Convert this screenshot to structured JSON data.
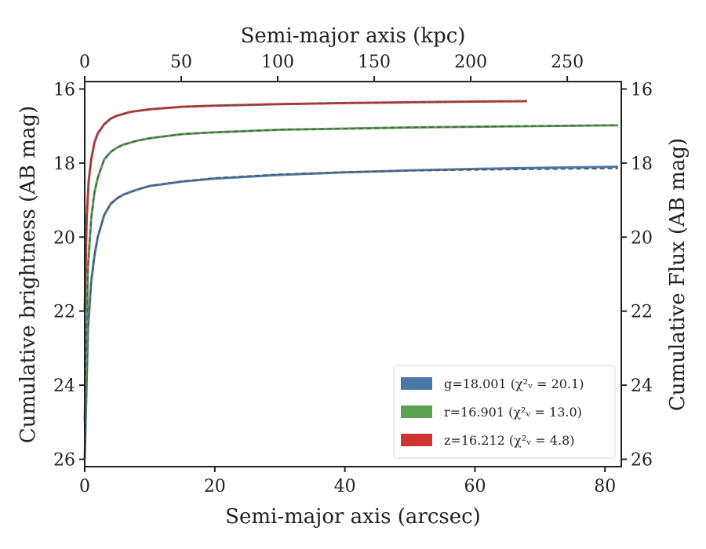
{
  "chart_data": {
    "type": "line",
    "title": "",
    "xlabel": "Semi-major axis (arcsec)",
    "top_xlabel": "Semi-major axis (kpc)",
    "ylabel": "Cumulative brightness (AB mag)",
    "right_ylabel": "Cumulative Flux (AB mag)",
    "xlim": [
      0,
      82.5
    ],
    "ylim": [
      26.2,
      15.8
    ],
    "y_inverted": true,
    "top_xlim": [
      0,
      278
    ],
    "x_ticks": [
      "0",
      "20",
      "40",
      "60",
      "80"
    ],
    "top_x_ticks": [
      "0",
      "50",
      "100",
      "150",
      "200",
      "250"
    ],
    "y_ticks": [
      "16",
      "18",
      "20",
      "22",
      "24",
      "26"
    ],
    "grid": false,
    "legend_position": "lower-right",
    "series": [
      {
        "name": "g",
        "legend_label": "g=18.001 (χ²ᵥ = 20.1)",
        "color": "#4878a8",
        "x": [
          0,
          0.5,
          1,
          1.5,
          2,
          3,
          4,
          5,
          6,
          8,
          10,
          15,
          20,
          30,
          40,
          50,
          60,
          70,
          82
        ],
        "values": [
          26.0,
          22.5,
          21.2,
          20.5,
          20.0,
          19.4,
          19.1,
          18.95,
          18.85,
          18.72,
          18.62,
          18.5,
          18.42,
          18.32,
          18.25,
          18.2,
          18.16,
          18.13,
          18.1
        ],
        "model_values": [
          26.0,
          22.5,
          21.2,
          20.5,
          20.0,
          19.4,
          19.1,
          18.95,
          18.85,
          18.72,
          18.62,
          18.49,
          18.4,
          18.3,
          18.24,
          18.21,
          18.19,
          18.17,
          18.15
        ]
      },
      {
        "name": "r",
        "legend_label": "r=16.901 (χ²ᵥ = 13.0)",
        "color": "#5ba353",
        "x": [
          0,
          0.5,
          1,
          1.5,
          2,
          3,
          4,
          5,
          6,
          8,
          10,
          15,
          20,
          30,
          40,
          50,
          60,
          70,
          82
        ],
        "values": [
          25.0,
          20.8,
          19.5,
          18.8,
          18.4,
          17.9,
          17.7,
          17.58,
          17.5,
          17.4,
          17.33,
          17.22,
          17.17,
          17.1,
          17.07,
          17.04,
          17.02,
          17.0,
          16.98
        ],
        "model_values": [
          25.0,
          20.8,
          19.5,
          18.8,
          18.4,
          17.9,
          17.7,
          17.58,
          17.5,
          17.4,
          17.33,
          17.22,
          17.17,
          17.1,
          17.07,
          17.04,
          17.02,
          17.0,
          16.98
        ]
      },
      {
        "name": "z",
        "legend_label": "z=16.212 (χ²ᵥ = 4.8)",
        "color": "#cc3333",
        "x": [
          0,
          0.3,
          0.6,
          1,
          1.5,
          2,
          3,
          4,
          5,
          7,
          10,
          15,
          20,
          30,
          40,
          50,
          60,
          68
        ],
        "values": [
          22.0,
          19.5,
          18.5,
          17.9,
          17.45,
          17.2,
          16.95,
          16.8,
          16.72,
          16.62,
          16.55,
          16.48,
          16.45,
          16.41,
          16.38,
          16.36,
          16.34,
          16.33
        ],
        "model_values": [
          22.0,
          19.5,
          18.5,
          17.9,
          17.45,
          17.2,
          16.95,
          16.8,
          16.72,
          16.62,
          16.55,
          16.48,
          16.45,
          16.41,
          16.38,
          16.36,
          16.34,
          16.32
        ]
      }
    ]
  }
}
